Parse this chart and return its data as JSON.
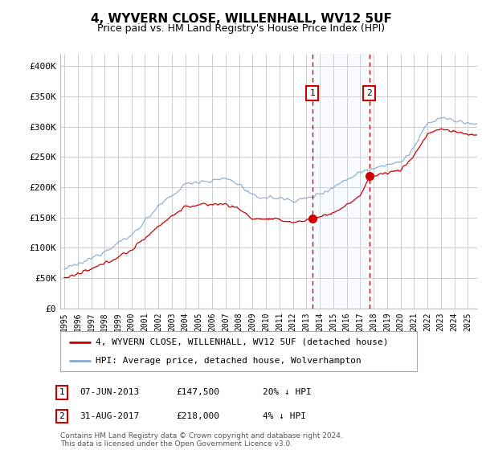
{
  "title": "4, WYVERN CLOSE, WILLENHALL, WV12 5UF",
  "subtitle": "Price paid vs. HM Land Registry's House Price Index (HPI)",
  "red_label": "4, WYVERN CLOSE, WILLENHALL, WV12 5UF (detached house)",
  "blue_label": "HPI: Average price, detached house, Wolverhampton",
  "annotation1_date": "07-JUN-2013",
  "annotation1_price": "£147,500",
  "annotation1_hpi": "20% ↓ HPI",
  "annotation2_date": "31-AUG-2017",
  "annotation2_price": "£218,000",
  "annotation2_hpi": "4% ↓ HPI",
  "footer": "Contains HM Land Registry data © Crown copyright and database right 2024.\nThis data is licensed under the Open Government Licence v3.0.",
  "ylim": [
    0,
    420000
  ],
  "yticks": [
    0,
    50000,
    100000,
    150000,
    200000,
    250000,
    300000,
    350000,
    400000
  ],
  "ytick_labels": [
    "£0",
    "£50K",
    "£100K",
    "£150K",
    "£200K",
    "£250K",
    "£300K",
    "£350K",
    "£400K"
  ],
  "background_color": "#ffffff",
  "plot_bg_color": "#ffffff",
  "grid_color": "#cccccc",
  "red_color": "#cc0000",
  "blue_color": "#88aacc",
  "shade_color": "#ddeeff",
  "annotation_box_color": "#cc0000",
  "sale1_year": 2013.44,
  "sale2_year": 2017.67,
  "sale1_value": 147500,
  "sale2_value": 218000,
  "xmin": 1995,
  "xmax": 2025
}
